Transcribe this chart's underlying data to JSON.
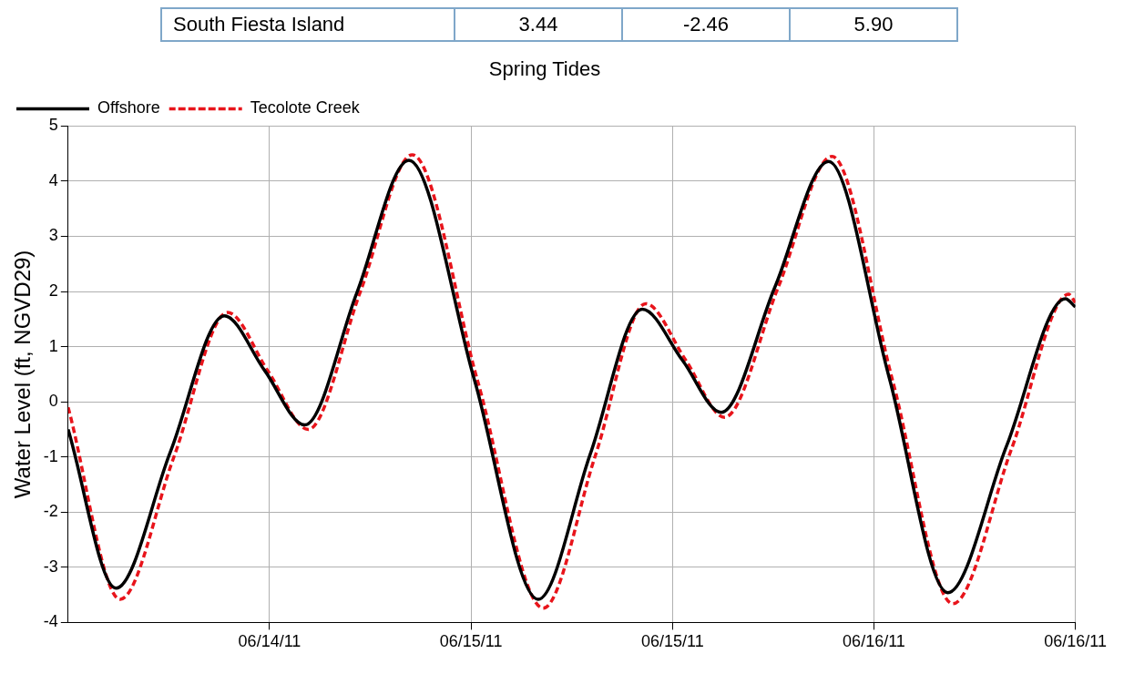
{
  "chart_data": {
    "type": "line",
    "title": "Spring Tides",
    "ylabel": "Water Level (ft, NGVD29)",
    "annotations": [
      "South Fiesta Island",
      "3.44",
      "-2.46",
      "5.90"
    ],
    "xlim": [
      "--06-14T00:00",
      "--06-16T12:00"
    ],
    "xticks": [
      {
        "value": "--06-14T12:00",
        "label": "06/14/11"
      },
      {
        "value": "--06-15T00:00",
        "label": "06/15/11"
      },
      {
        "value": "--06-15T12:00",
        "label": "06/15/11"
      },
      {
        "value": "--06-16T00:00",
        "label": "06/16/11"
      },
      {
        "value": "--06-16T12:00",
        "label": "06/16/11"
      }
    ],
    "ylim": [
      -4,
      5
    ],
    "yticks": [
      -4,
      -3,
      -2,
      -1,
      0,
      1,
      2,
      3,
      4,
      5
    ],
    "grid": true,
    "legend": "top left",
    "marker": "none",
    "series": [
      {
        "name": "Offshore",
        "color": "#000000",
        "line_style": "solid",
        "x": [
          "--06-14T00:00",
          "--06-14T02:51",
          "--06-14T06:06",
          "--06-14T09:18",
          "--06-14T11:42",
          "--06-14T14:06",
          "--06-14T17:12",
          "--06-14T20:18",
          "--06-15T00:12",
          "--06-15T04:00",
          "--06-15T07:06",
          "--06-15T10:12",
          "--06-15T12:36",
          "--06-15T14:54",
          "--06-15T18:06",
          "--06-15T21:18",
          "--06-16T00:54",
          "--06-16T04:24",
          "--06-16T07:54",
          "--06-16T11:24",
          "--06-16T12:00"
        ],
        "values": [
          -0.5,
          -3.38,
          -0.9,
          1.56,
          0.57,
          -0.42,
          1.98,
          4.38,
          0.4,
          -3.58,
          -0.95,
          1.68,
          0.75,
          -0.19,
          2.08,
          4.36,
          0.45,
          -3.46,
          -0.8,
          1.87,
          1.72
        ]
      },
      {
        "name": "Tecolote Creek",
        "color": "#e8141b",
        "line_style": "dashed",
        "x": [
          "--06-14T00:00",
          "--06-14T03:06",
          "--06-14T06:18",
          "--06-14T09:30",
          "--06-14T11:54",
          "--06-14T14:18",
          "--06-14T17:24",
          "--06-14T20:30",
          "--06-15T00:24",
          "--06-15T04:18",
          "--06-15T07:24",
          "--06-15T10:24",
          "--06-15T12:48",
          "--06-15T15:06",
          "--06-15T18:18",
          "--06-15T21:30",
          "--06-16T01:06",
          "--06-16T04:42",
          "--06-16T08:12",
          "--06-16T11:36",
          "--06-16T12:00"
        ],
        "values": [
          -0.1,
          -3.58,
          -1.0,
          1.62,
          0.56,
          -0.5,
          1.99,
          4.48,
          0.37,
          -3.74,
          -0.98,
          1.78,
          0.75,
          -0.28,
          2.08,
          4.45,
          0.4,
          -3.66,
          -0.85,
          1.95,
          1.8
        ]
      }
    ]
  }
}
